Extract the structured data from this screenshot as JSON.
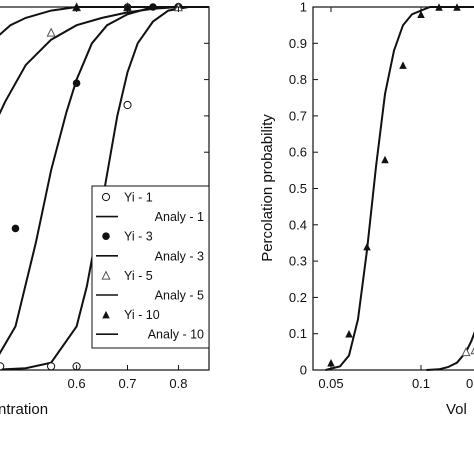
{
  "chart_data": [
    {
      "type": "line",
      "xlabel": "ntration",
      "ylabel": "",
      "xlim": [
        0.43,
        0.86
      ],
      "ylim": [
        0,
        1
      ],
      "xticks": [
        {
          "value": 0.6,
          "label": "0.6"
        },
        {
          "value": 0.7,
          "label": "0.7"
        },
        {
          "value": 0.8,
          "label": "0.8"
        }
      ],
      "legend": {
        "placement": "lower-right",
        "entries": [
          {
            "label": "Yi - 1",
            "marker": "open-circle"
          },
          {
            "label": "Analy - 1",
            "marker": "line"
          },
          {
            "label": "Yi - 3",
            "marker": "filled-circle"
          },
          {
            "label": "Analy - 3",
            "marker": "line"
          },
          {
            "label": "Yi - 5",
            "marker": "open-triangle"
          },
          {
            "label": "Analy - 5",
            "marker": "line"
          },
          {
            "label": "Yi - 10",
            "marker": "filled-triangle"
          },
          {
            "label": "Analy - 10",
            "marker": "line"
          }
        ]
      },
      "scatter_series": [
        {
          "name": "Yi - 1",
          "marker": "open-circle",
          "x": [
            0.45,
            0.55,
            0.6,
            0.65,
            0.7,
            0.8
          ],
          "y": [
            0.01,
            0.01,
            0.01,
            0.2,
            0.73,
            1.0
          ]
        },
        {
          "name": "Yi - 3",
          "marker": "filled-circle",
          "x": [
            0.48,
            0.6,
            0.7,
            0.75,
            0.8
          ],
          "y": [
            0.39,
            0.79,
            1.0,
            1.0,
            1.0
          ]
        },
        {
          "name": "Yi - 5",
          "marker": "open-triangle",
          "x": [
            0.55,
            0.6,
            0.7,
            0.8
          ],
          "y": [
            0.93,
            1.0,
            1.0,
            1.0
          ]
        },
        {
          "name": "Yi - 10",
          "marker": "filled-triangle",
          "x": [
            0.6,
            0.7
          ],
          "y": [
            1.0,
            1.0
          ]
        }
      ],
      "curve_series": [
        {
          "name": "Analy - 1",
          "x": [
            0.43,
            0.5,
            0.55,
            0.6,
            0.62,
            0.64,
            0.66,
            0.68,
            0.7,
            0.72,
            0.75,
            0.78,
            0.82,
            0.86
          ],
          "y": [
            0.0,
            0.005,
            0.02,
            0.12,
            0.23,
            0.38,
            0.54,
            0.7,
            0.82,
            0.9,
            0.96,
            0.99,
            1.0,
            1.0
          ]
        },
        {
          "name": "Analy - 3",
          "x": [
            0.43,
            0.48,
            0.52,
            0.55,
            0.58,
            0.6,
            0.63,
            0.66,
            0.7,
            0.75,
            0.8,
            0.86
          ],
          "y": [
            0.0,
            0.12,
            0.35,
            0.55,
            0.71,
            0.8,
            0.9,
            0.95,
            0.98,
            1.0,
            1.0,
            1.0
          ]
        },
        {
          "name": "Analy - 5",
          "x": [
            0.43,
            0.46,
            0.5,
            0.55,
            0.6,
            0.65,
            0.7,
            0.75,
            0.8,
            0.86
          ],
          "y": [
            0.65,
            0.74,
            0.84,
            0.91,
            0.95,
            0.97,
            0.985,
            0.995,
            1.0,
            1.0
          ]
        },
        {
          "name": "Analy - 10",
          "x": [
            0.43,
            0.47,
            0.5,
            0.55,
            0.6,
            0.7,
            0.86
          ],
          "y": [
            0.9,
            0.95,
            0.97,
            0.99,
            1.0,
            1.0,
            1.0
          ]
        }
      ]
    },
    {
      "type": "line",
      "xlabel": "Vol",
      "ylabel": "Percolation probability",
      "xlim": [
        0.04,
        0.135
      ],
      "ylim": [
        0,
        1
      ],
      "xticks": [
        {
          "value": 0.05,
          "label": "0.05"
        },
        {
          "value": 0.1,
          "label": "0.1"
        },
        {
          "value": 0.13,
          "label": "0.1"
        }
      ],
      "yticks": [
        {
          "value": 0,
          "label": "0"
        },
        {
          "value": 0.1,
          "label": "0.1"
        },
        {
          "value": 0.2,
          "label": "0.2"
        },
        {
          "value": 0.3,
          "label": "0.3"
        },
        {
          "value": 0.4,
          "label": "0.4"
        },
        {
          "value": 0.5,
          "label": "0.5"
        },
        {
          "value": 0.6,
          "label": "0.6"
        },
        {
          "value": 0.7,
          "label": "0.7"
        },
        {
          "value": 0.8,
          "label": "0.8"
        },
        {
          "value": 0.9,
          "label": "0.9"
        },
        {
          "value": 1.0,
          "label": "1"
        }
      ],
      "scatter_series": [
        {
          "marker": "filled-triangle",
          "x": [
            0.05,
            0.06,
            0.07,
            0.08,
            0.09,
            0.1,
            0.11,
            0.12
          ],
          "y": [
            0.02,
            0.1,
            0.34,
            0.58,
            0.84,
            0.98,
            1.0,
            1.0
          ]
        },
        {
          "marker": "open-triangle",
          "x": [
            0.125,
            0.13
          ],
          "y": [
            0.05,
            0.055
          ]
        }
      ],
      "curve_series": [
        {
          "x": [
            0.047,
            0.055,
            0.06,
            0.065,
            0.07,
            0.075,
            0.08,
            0.085,
            0.09,
            0.095,
            0.1,
            0.105,
            0.11,
            0.135
          ],
          "y": [
            0.0,
            0.01,
            0.04,
            0.14,
            0.33,
            0.56,
            0.76,
            0.88,
            0.95,
            0.98,
            0.99,
            1.0,
            1.0,
            1.0
          ]
        },
        {
          "x": [
            0.103,
            0.11,
            0.115,
            0.12,
            0.125,
            0.128,
            0.131,
            0.133,
            0.135
          ],
          "y": [
            0.0,
            0.002,
            0.008,
            0.02,
            0.05,
            0.08,
            0.12,
            0.15,
            0.18
          ]
        }
      ]
    }
  ]
}
